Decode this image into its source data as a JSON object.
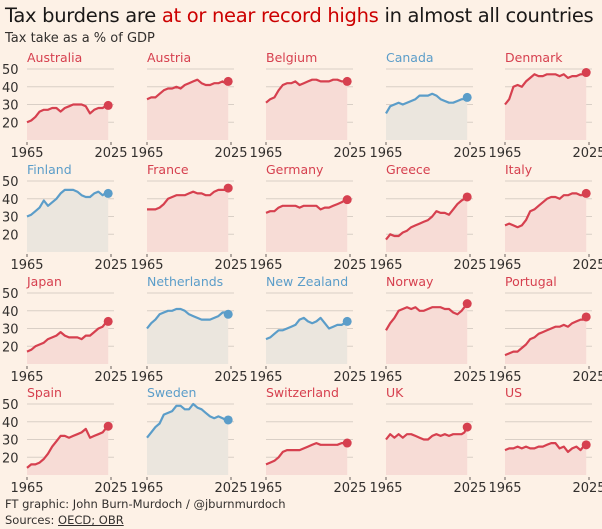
{
  "header": {
    "title_pre": "Tax burdens are ",
    "title_highlight": "at or near record highs",
    "title_post": " in almost all countries",
    "subtitle": "Tax take as a % of GDP"
  },
  "footer": {
    "credit": "FT graphic: John Burn-Murdoch / @jburnmurdoch",
    "sources_label": "Sources: ",
    "sources_link": "OECD; OBR"
  },
  "colors": {
    "record": "#d6404f",
    "record_fill": "#f7dcd6",
    "not_record": "#5b9dc9",
    "not_record_fill": "#ebe6de",
    "grid": "#d9cfc6",
    "highlight_text": "#cc0000"
  },
  "chart_data": {
    "type": "line",
    "title": "Tax burdens are at or near record highs in almost all countries",
    "subtitle": "Tax take as a % of GDP",
    "xlabel": "",
    "ylabel": "Tax take as a % of GDP",
    "xlim": [
      1965,
      2025
    ],
    "ylim": [
      10,
      50
    ],
    "yticks": [
      20,
      30,
      40,
      50
    ],
    "xticks": [
      1965,
      2025
    ],
    "grid": true,
    "x": [
      1965,
      1968,
      1971,
      1974,
      1977,
      1980,
      1983,
      1986,
      1989,
      1992,
      1995,
      1998,
      2001,
      2004,
      2007,
      2010,
      2013,
      2016,
      2019,
      2021,
      2023
    ],
    "series": [
      {
        "name": "Australia",
        "record": true,
        "values": [
          20,
          21,
          23,
          26,
          27,
          27,
          28,
          28,
          26,
          28,
          29,
          30,
          30,
          30,
          29,
          25,
          27,
          28,
          28,
          29,
          29.5
        ]
      },
      {
        "name": "Austria",
        "record": true,
        "values": [
          33,
          34,
          34,
          36,
          38,
          39,
          39,
          40,
          39,
          41,
          42,
          43,
          44,
          42,
          41,
          41,
          42,
          42,
          43,
          42,
          43
        ]
      },
      {
        "name": "Belgium",
        "record": true,
        "values": [
          31,
          33,
          34,
          38,
          41,
          42,
          42,
          43,
          41,
          42,
          43,
          44,
          44,
          43,
          43,
          43,
          44,
          44,
          43,
          43,
          43
        ]
      },
      {
        "name": "Canada",
        "record": false,
        "values": [
          25,
          29,
          30,
          31,
          30,
          31,
          32,
          33,
          35,
          35,
          35,
          36,
          35,
          33,
          32,
          31,
          31,
          32,
          33,
          33,
          34
        ]
      },
      {
        "name": "Denmark",
        "record": true,
        "values": [
          30,
          33,
          40,
          41,
          40,
          43,
          45,
          47,
          46,
          46,
          47,
          47,
          47,
          46,
          47,
          45,
          46,
          46,
          47,
          47,
          48
        ]
      },
      {
        "name": "Finland",
        "record": false,
        "values": [
          30,
          31,
          33,
          35,
          39,
          36,
          38,
          40,
          43,
          45,
          45,
          45,
          44,
          42,
          41,
          41,
          43,
          44,
          42,
          43,
          43
        ]
      },
      {
        "name": "France",
        "record": true,
        "values": [
          34,
          34,
          34,
          35,
          37,
          40,
          41,
          42,
          42,
          42,
          43,
          44,
          43,
          43,
          42,
          42,
          44,
          45,
          45,
          45,
          46
        ]
      },
      {
        "name": "Germany",
        "record": true,
        "values": [
          32,
          33,
          33,
          35,
          36,
          36,
          36,
          36,
          35,
          36,
          36,
          36,
          36,
          34,
          35,
          35,
          36,
          37,
          38,
          39,
          39.5
        ]
      },
      {
        "name": "Greece",
        "record": true,
        "values": [
          17,
          20,
          19,
          19,
          21,
          22,
          24,
          25,
          26,
          27,
          28,
          30,
          33,
          32,
          32,
          31,
          34,
          37,
          39,
          40,
          41
        ]
      },
      {
        "name": "Italy",
        "record": true,
        "values": [
          25,
          26,
          25,
          24,
          25,
          28,
          33,
          34,
          36,
          38,
          40,
          41,
          41,
          40,
          42,
          42,
          43,
          43,
          42,
          42,
          43
        ]
      },
      {
        "name": "Japan",
        "record": true,
        "values": [
          17,
          18,
          20,
          21,
          22,
          24,
          25,
          26,
          28,
          26,
          25,
          25,
          25,
          24,
          26,
          26,
          28,
          30,
          31,
          33,
          34
        ]
      },
      {
        "name": "Netherlands",
        "record": false,
        "values": [
          30,
          33,
          35,
          38,
          39,
          40,
          40,
          41,
          41,
          40,
          38,
          37,
          36,
          35,
          35,
          35,
          36,
          37,
          39,
          39,
          38
        ]
      },
      {
        "name": "New Zealand",
        "record": false,
        "values": [
          24,
          25,
          27,
          29,
          29,
          30,
          31,
          32,
          35,
          36,
          34,
          33,
          34,
          36,
          33,
          30,
          31,
          32,
          32,
          33,
          34
        ]
      },
      {
        "name": "Norway",
        "record": true,
        "values": [
          29,
          33,
          36,
          40,
          41,
          42,
          41,
          42,
          40,
          40,
          41,
          42,
          42,
          42,
          41,
          41,
          39,
          38,
          40,
          42,
          44
        ]
      },
      {
        "name": "Portugal",
        "record": true,
        "values": [
          15,
          16,
          17,
          17,
          19,
          21,
          24,
          25,
          27,
          28,
          29,
          30,
          31,
          31,
          32,
          31,
          33,
          34,
          35,
          35,
          36.5
        ]
      },
      {
        "name": "Spain",
        "record": true,
        "values": [
          14,
          16,
          16,
          17,
          19,
          22,
          26,
          29,
          32,
          32,
          31,
          32,
          33,
          34,
          36,
          31,
          32,
          33,
          34,
          36,
          37.5
        ]
      },
      {
        "name": "Sweden",
        "record": false,
        "values": [
          31,
          34,
          37,
          39,
          44,
          45,
          46,
          49,
          49,
          47,
          47,
          50,
          48,
          47,
          45,
          43,
          42,
          43,
          42,
          41,
          41
        ]
      },
      {
        "name": "Switzerland",
        "record": true,
        "values": [
          16,
          17,
          18,
          20,
          23,
          24,
          24,
          24,
          24,
          25,
          26,
          27,
          28,
          27,
          27,
          27,
          27,
          27,
          28,
          28,
          28
        ]
      },
      {
        "name": "UK",
        "record": true,
        "values": [
          30,
          33,
          31,
          33,
          31,
          33,
          33,
          32,
          31,
          30,
          30,
          32,
          33,
          32,
          33,
          32,
          33,
          33,
          33,
          34,
          37
        ]
      },
      {
        "name": "US",
        "record": true,
        "values": [
          24,
          25,
          25,
          26,
          25,
          26,
          25,
          25,
          26,
          26,
          27,
          28,
          28,
          25,
          26,
          23,
          25,
          26,
          24,
          26,
          27
        ]
      }
    ]
  }
}
